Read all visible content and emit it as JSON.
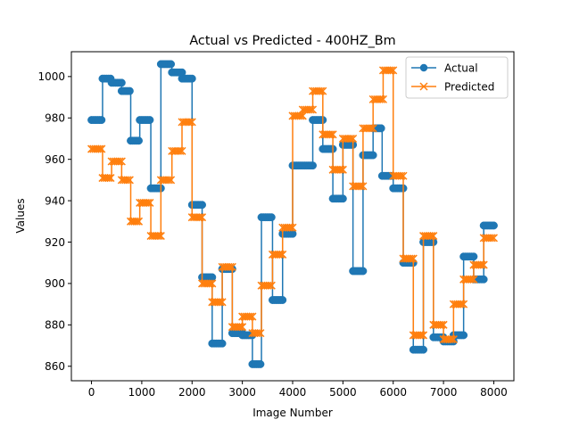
{
  "chart_data": {
    "type": "line",
    "title": "Actual vs Predicted - 400HZ_Bm",
    "xlabel": "Image Number",
    "ylabel": "Values",
    "xlim": [
      -400,
      8400
    ],
    "ylim": [
      853,
      1012
    ],
    "xticks": [
      0,
      1000,
      2000,
      3000,
      4000,
      5000,
      6000,
      7000,
      8000
    ],
    "yticks": [
      860,
      880,
      900,
      920,
      940,
      960,
      980,
      1000
    ],
    "legend": "upper right",
    "series": [
      {
        "name": "Actual",
        "color": "#1f77b4",
        "marker": "circle",
        "segments": [
          {
            "x0": 0,
            "x1": 220,
            "y": 979
          },
          {
            "x0": 220,
            "x1": 400,
            "y": 999
          },
          {
            "x0": 400,
            "x1": 600,
            "y": 997
          },
          {
            "x0": 600,
            "x1": 780,
            "y": 993
          },
          {
            "x0": 780,
            "x1": 960,
            "y": 969
          },
          {
            "x0": 960,
            "x1": 1180,
            "y": 979
          },
          {
            "x0": 1180,
            "x1": 1380,
            "y": 946
          },
          {
            "x0": 1380,
            "x1": 1600,
            "y": 1006
          },
          {
            "x0": 1600,
            "x1": 1800,
            "y": 1002
          },
          {
            "x0": 1800,
            "x1": 2000,
            "y": 999
          },
          {
            "x0": 2000,
            "x1": 2200,
            "y": 938
          },
          {
            "x0": 2200,
            "x1": 2400,
            "y": 903
          },
          {
            "x0": 2400,
            "x1": 2600,
            "y": 871
          },
          {
            "x0": 2600,
            "x1": 2800,
            "y": 907
          },
          {
            "x0": 2800,
            "x1": 3000,
            "y": 876
          },
          {
            "x0": 3000,
            "x1": 3200,
            "y": 875
          },
          {
            "x0": 3200,
            "x1": 3380,
            "y": 861
          },
          {
            "x0": 3380,
            "x1": 3600,
            "y": 932
          },
          {
            "x0": 3600,
            "x1": 3800,
            "y": 892
          },
          {
            "x0": 3800,
            "x1": 4000,
            "y": 924
          },
          {
            "x0": 4000,
            "x1": 4400,
            "y": 957
          },
          {
            "x0": 4400,
            "x1": 4600,
            "y": 979
          },
          {
            "x0": 4600,
            "x1": 4800,
            "y": 965
          },
          {
            "x0": 4800,
            "x1": 5000,
            "y": 941
          },
          {
            "x0": 5000,
            "x1": 5200,
            "y": 967
          },
          {
            "x0": 5200,
            "x1": 5400,
            "y": 906
          },
          {
            "x0": 5400,
            "x1": 5600,
            "y": 962
          },
          {
            "x0": 5600,
            "x1": 5780,
            "y": 975
          },
          {
            "x0": 5780,
            "x1": 6000,
            "y": 952
          },
          {
            "x0": 6000,
            "x1": 6200,
            "y": 946
          },
          {
            "x0": 6200,
            "x1": 6400,
            "y": 910
          },
          {
            "x0": 6400,
            "x1": 6600,
            "y": 868
          },
          {
            "x0": 6600,
            "x1": 6800,
            "y": 920
          },
          {
            "x0": 6800,
            "x1": 7000,
            "y": 874
          },
          {
            "x0": 7000,
            "x1": 7200,
            "y": 872
          },
          {
            "x0": 7200,
            "x1": 7400,
            "y": 875
          },
          {
            "x0": 7400,
            "x1": 7600,
            "y": 913
          },
          {
            "x0": 7600,
            "x1": 7800,
            "y": 902
          },
          {
            "x0": 7800,
            "x1": 8000,
            "y": 928
          }
        ]
      },
      {
        "name": "Predicted",
        "color": "#ff7f0e",
        "marker": "x",
        "segments": [
          {
            "x0": 0,
            "x1": 220,
            "y": 965
          },
          {
            "x0": 220,
            "x1": 400,
            "y": 951
          },
          {
            "x0": 400,
            "x1": 600,
            "y": 959
          },
          {
            "x0": 600,
            "x1": 780,
            "y": 950
          },
          {
            "x0": 780,
            "x1": 960,
            "y": 930
          },
          {
            "x0": 960,
            "x1": 1180,
            "y": 939
          },
          {
            "x0": 1180,
            "x1": 1380,
            "y": 923
          },
          {
            "x0": 1380,
            "x1": 1600,
            "y": 950
          },
          {
            "x0": 1600,
            "x1": 1800,
            "y": 964
          },
          {
            "x0": 1800,
            "x1": 2000,
            "y": 978
          },
          {
            "x0": 2000,
            "x1": 2200,
            "y": 932
          },
          {
            "x0": 2200,
            "x1": 2400,
            "y": 900
          },
          {
            "x0": 2400,
            "x1": 2600,
            "y": 891
          },
          {
            "x0": 2600,
            "x1": 2800,
            "y": 908
          },
          {
            "x0": 2800,
            "x1": 3000,
            "y": 879
          },
          {
            "x0": 3000,
            "x1": 3200,
            "y": 884
          },
          {
            "x0": 3200,
            "x1": 3380,
            "y": 876
          },
          {
            "x0": 3380,
            "x1": 3600,
            "y": 899
          },
          {
            "x0": 3600,
            "x1": 3800,
            "y": 914
          },
          {
            "x0": 3800,
            "x1": 4000,
            "y": 927
          },
          {
            "x0": 4000,
            "x1": 4200,
            "y": 981
          },
          {
            "x0": 4200,
            "x1": 4400,
            "y": 984
          },
          {
            "x0": 4400,
            "x1": 4600,
            "y": 993
          },
          {
            "x0": 4600,
            "x1": 4800,
            "y": 972
          },
          {
            "x0": 4800,
            "x1": 5000,
            "y": 955
          },
          {
            "x0": 5000,
            "x1": 5200,
            "y": 970
          },
          {
            "x0": 5200,
            "x1": 5400,
            "y": 947
          },
          {
            "x0": 5400,
            "x1": 5600,
            "y": 975
          },
          {
            "x0": 5600,
            "x1": 5800,
            "y": 989
          },
          {
            "x0": 5800,
            "x1": 6000,
            "y": 1003
          },
          {
            "x0": 6000,
            "x1": 6200,
            "y": 952
          },
          {
            "x0": 6200,
            "x1": 6400,
            "y": 912
          },
          {
            "x0": 6400,
            "x1": 6600,
            "y": 875
          },
          {
            "x0": 6600,
            "x1": 6800,
            "y": 923
          },
          {
            "x0": 6800,
            "x1": 7000,
            "y": 880
          },
          {
            "x0": 7000,
            "x1": 7200,
            "y": 873
          },
          {
            "x0": 7200,
            "x1": 7400,
            "y": 890
          },
          {
            "x0": 7400,
            "x1": 7600,
            "y": 902
          },
          {
            "x0": 7600,
            "x1": 7800,
            "y": 909
          },
          {
            "x0": 7800,
            "x1": 8000,
            "y": 922
          }
        ]
      }
    ]
  }
}
